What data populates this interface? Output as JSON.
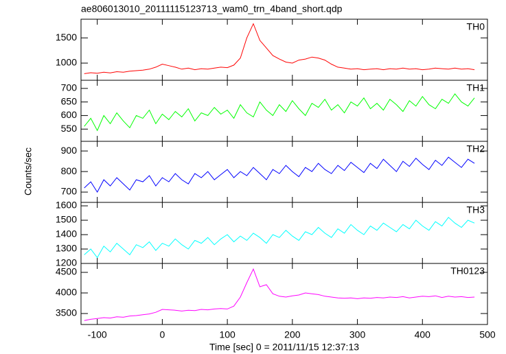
{
  "title": "ae806013010_20111115123713_wam0_trn_4band_short.qdp",
  "y_label": "Counts/sec",
  "x_label": "Time [sec] 0 = 2011/11/15 12:37:13",
  "chart_data": [
    {
      "type": "line",
      "name": "TH0",
      "color": "#ff0000",
      "xlim": [
        -125,
        500
      ],
      "xticks": [
        -100,
        0,
        100,
        200,
        300,
        400,
        500
      ],
      "ylim": [
        660,
        1870
      ],
      "yticks": [
        1000,
        1500
      ],
      "x": [
        -120,
        -110,
        -100,
        -90,
        -80,
        -70,
        -60,
        -50,
        -40,
        -30,
        -20,
        -10,
        0,
        10,
        20,
        30,
        40,
        50,
        60,
        70,
        80,
        90,
        100,
        110,
        120,
        130,
        140,
        150,
        160,
        170,
        180,
        190,
        200,
        210,
        220,
        230,
        240,
        250,
        260,
        270,
        280,
        290,
        300,
        310,
        320,
        330,
        340,
        350,
        360,
        370,
        380,
        390,
        400,
        410,
        420,
        430,
        440,
        450,
        460,
        470,
        480
      ],
      "values": [
        790,
        810,
        800,
        820,
        805,
        830,
        820,
        840,
        850,
        860,
        880,
        920,
        980,
        950,
        920,
        880,
        900,
        870,
        890,
        880,
        900,
        920,
        910,
        960,
        1100,
        1500,
        1780,
        1450,
        1300,
        1150,
        1080,
        1020,
        1000,
        1060,
        1080,
        1120,
        1100,
        1060,
        980,
        920,
        900,
        880,
        890,
        870,
        880,
        890,
        870,
        890,
        880,
        900,
        880,
        890,
        870,
        880,
        900,
        890,
        880,
        900,
        880,
        890,
        870
      ]
    },
    {
      "type": "line",
      "name": "TH1",
      "color": "#00ff00",
      "xlim": [
        -125,
        500
      ],
      "xticks": [
        -100,
        0,
        100,
        200,
        300,
        400,
        500
      ],
      "ylim": [
        505,
        730
      ],
      "yticks": [
        550,
        600,
        650,
        700
      ],
      "x": [
        -120,
        -110,
        -100,
        -90,
        -80,
        -70,
        -60,
        -50,
        -40,
        -30,
        -20,
        -10,
        0,
        10,
        20,
        30,
        40,
        50,
        60,
        70,
        80,
        90,
        100,
        110,
        120,
        130,
        140,
        150,
        160,
        170,
        180,
        190,
        200,
        210,
        220,
        230,
        240,
        250,
        260,
        270,
        280,
        290,
        300,
        310,
        320,
        330,
        340,
        350,
        360,
        370,
        380,
        390,
        400,
        410,
        420,
        430,
        440,
        450,
        460,
        470,
        480
      ],
      "values": [
        560,
        590,
        545,
        600,
        570,
        610,
        580,
        555,
        600,
        590,
        620,
        570,
        605,
        585,
        615,
        595,
        625,
        580,
        610,
        600,
        630,
        605,
        620,
        590,
        640,
        610,
        595,
        650,
        620,
        600,
        640,
        615,
        655,
        625,
        600,
        645,
        630,
        660,
        620,
        640,
        610,
        650,
        635,
        665,
        625,
        645,
        620,
        660,
        640,
        615,
        655,
        635,
        670,
        640,
        625,
        660,
        645,
        680,
        650,
        635,
        665
      ]
    },
    {
      "type": "line",
      "name": "TH2",
      "color": "#0000ff",
      "xlim": [
        -125,
        500
      ],
      "xticks": [
        -100,
        0,
        100,
        200,
        300,
        400,
        500
      ],
      "ylim": [
        650,
        947
      ],
      "yticks": [
        700,
        800,
        900
      ],
      "x": [
        -120,
        -110,
        -100,
        -90,
        -80,
        -70,
        -60,
        -50,
        -40,
        -30,
        -20,
        -10,
        0,
        10,
        20,
        30,
        40,
        50,
        60,
        70,
        80,
        90,
        100,
        110,
        120,
        130,
        140,
        150,
        160,
        170,
        180,
        190,
        200,
        210,
        220,
        230,
        240,
        250,
        260,
        270,
        280,
        290,
        300,
        310,
        320,
        330,
        340,
        350,
        360,
        370,
        380,
        390,
        400,
        410,
        420,
        430,
        440,
        450,
        460,
        470,
        480
      ],
      "values": [
        720,
        750,
        700,
        760,
        730,
        770,
        740,
        710,
        760,
        750,
        780,
        730,
        770,
        750,
        790,
        760,
        740,
        790,
        770,
        800,
        760,
        785,
        810,
        770,
        800,
        780,
        820,
        790,
        760,
        810,
        790,
        830,
        800,
        775,
        820,
        800,
        840,
        810,
        790,
        830,
        805,
        845,
        820,
        795,
        840,
        815,
        860,
        830,
        800,
        850,
        825,
        865,
        835,
        810,
        855,
        830,
        870,
        845,
        820,
        860,
        840
      ]
    },
    {
      "type": "line",
      "name": "TH3",
      "color": "#00ffff",
      "xlim": [
        -125,
        500
      ],
      "xticks": [
        -100,
        0,
        100,
        200,
        300,
        400,
        500
      ],
      "ylim": [
        1200,
        1624
      ],
      "yticks": [
        1200,
        1300,
        1400,
        1500,
        1600
      ],
      "x": [
        -120,
        -110,
        -100,
        -90,
        -80,
        -70,
        -60,
        -50,
        -40,
        -30,
        -20,
        -10,
        0,
        10,
        20,
        30,
        40,
        50,
        60,
        70,
        80,
        90,
        100,
        110,
        120,
        130,
        140,
        150,
        160,
        170,
        180,
        190,
        200,
        210,
        220,
        230,
        240,
        250,
        260,
        270,
        280,
        290,
        300,
        310,
        320,
        330,
        340,
        350,
        360,
        370,
        380,
        390,
        400,
        410,
        420,
        430,
        440,
        450,
        460,
        470,
        480
      ],
      "values": [
        1260,
        1300,
        1240,
        1320,
        1280,
        1340,
        1300,
        1260,
        1330,
        1310,
        1350,
        1290,
        1340,
        1320,
        1370,
        1330,
        1300,
        1360,
        1340,
        1380,
        1330,
        1370,
        1400,
        1350,
        1390,
        1360,
        1410,
        1380,
        1340,
        1400,
        1380,
        1430,
        1390,
        1360,
        1420,
        1400,
        1450,
        1410,
        1380,
        1440,
        1410,
        1470,
        1430,
        1400,
        1460,
        1430,
        1480,
        1450,
        1420,
        1470,
        1440,
        1500,
        1460,
        1430,
        1490,
        1460,
        1520,
        1480,
        1450,
        1500,
        1480
      ]
    },
    {
      "type": "line",
      "name": "TH0123",
      "color": "#ff00ff",
      "xlim": [
        -125,
        500
      ],
      "xticks": [
        -100,
        0,
        100,
        200,
        300,
        400,
        500
      ],
      "ylim": [
        3233,
        4717
      ],
      "yticks": [
        3500,
        4000,
        4500
      ],
      "x": [
        -120,
        -110,
        -100,
        -90,
        -80,
        -70,
        -60,
        -50,
        -40,
        -30,
        -20,
        -10,
        0,
        10,
        20,
        30,
        40,
        50,
        60,
        70,
        80,
        90,
        100,
        110,
        120,
        130,
        140,
        150,
        160,
        170,
        180,
        190,
        200,
        210,
        220,
        230,
        240,
        250,
        260,
        270,
        280,
        290,
        300,
        310,
        320,
        330,
        340,
        350,
        360,
        370,
        380,
        390,
        400,
        410,
        420,
        430,
        440,
        450,
        460,
        470,
        480
      ],
      "values": [
        3330,
        3360,
        3380,
        3400,
        3390,
        3420,
        3410,
        3440,
        3450,
        3470,
        3490,
        3530,
        3600,
        3590,
        3580,
        3560,
        3580,
        3570,
        3600,
        3590,
        3610,
        3620,
        3610,
        3680,
        3900,
        4250,
        4580,
        4150,
        4200,
        3980,
        3920,
        3900,
        3930,
        3950,
        4000,
        3980,
        3960,
        3920,
        3900,
        3880,
        3870,
        3880,
        3860,
        3880,
        3870,
        3890,
        3880,
        3900,
        3890,
        3910,
        3880,
        3900,
        3920,
        3910,
        3930,
        3890,
        3920,
        3900,
        3910,
        3890,
        3900
      ]
    }
  ]
}
